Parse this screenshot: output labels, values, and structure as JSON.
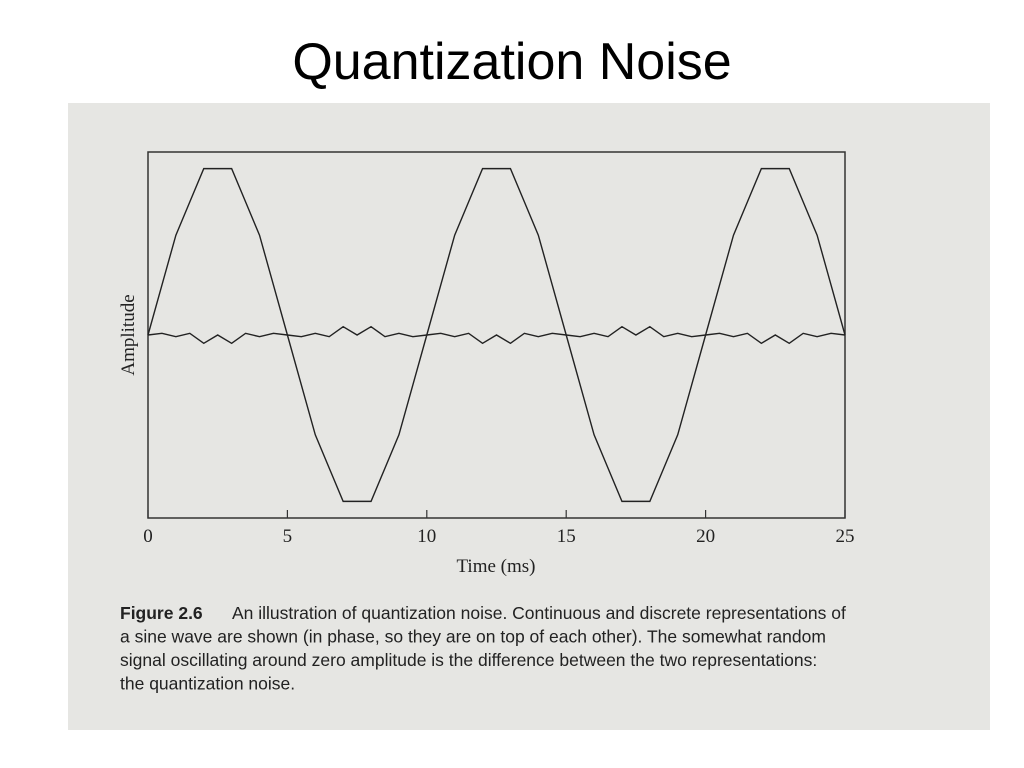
{
  "title": "Quantization Noise",
  "chart_data": {
    "type": "line",
    "xlabel": "Time (ms)",
    "ylabel": "Amplitude",
    "x": [
      0,
      0.5,
      1,
      1.5,
      2,
      2.5,
      3,
      3.5,
      4,
      4.5,
      5,
      5.5,
      6,
      6.5,
      7,
      7.5,
      8,
      8.5,
      9,
      9.5,
      10,
      10.5,
      11,
      11.5,
      12,
      12.5,
      13,
      13.5,
      14,
      14.5,
      15,
      15.5,
      16,
      16.5,
      17,
      17.5,
      18,
      18.5,
      19,
      19.5,
      20,
      20.5,
      21,
      21.5,
      22,
      22.5,
      23,
      23.5,
      24,
      24.5,
      25
    ],
    "series": [
      {
        "color": "#222222",
        "values": [
          0,
          0.3,
          0.6,
          0.8,
          1,
          1,
          1,
          0.8,
          0.6,
          0.3,
          0,
          -0.3,
          -0.6,
          -0.8,
          -1,
          -1,
          -1,
          -0.8,
          -0.6,
          -0.3,
          0,
          0.3,
          0.6,
          0.8,
          1,
          1,
          1,
          0.8,
          0.6,
          0.3,
          0,
          -0.3,
          -0.6,
          -0.8,
          -1,
          -1,
          -1,
          -0.8,
          -0.6,
          -0.3,
          0,
          0.3,
          0.6,
          0.8,
          1,
          1,
          1,
          0.8,
          0.6,
          0.3,
          0
        ]
      },
      {
        "color": "#222222",
        "values": [
          0,
          0.01,
          -0.01,
          0.01,
          -0.05,
          0,
          -0.05,
          0.01,
          -0.01,
          0.01,
          0,
          -0.01,
          0.01,
          -0.01,
          0.05,
          0,
          0.05,
          -0.01,
          0.01,
          -0.01,
          0,
          0.01,
          -0.01,
          0.01,
          -0.05,
          0,
          -0.05,
          0.01,
          -0.01,
          0.01,
          0,
          -0.01,
          0.01,
          -0.01,
          0.05,
          0,
          0.05,
          -0.01,
          0.01,
          -0.01,
          0,
          0.01,
          -0.01,
          0.01,
          -0.05,
          0,
          -0.05,
          0.01,
          -0.01,
          0.01,
          0
        ]
      }
    ],
    "xlim": [
      0,
      25
    ],
    "xticks": [
      0,
      5,
      10,
      15,
      20,
      25
    ],
    "ylim": [
      -1.1,
      1.1
    ]
  },
  "caption": {
    "label": "Figure 2.6",
    "lines": [
      "An illustration of quantization noise. Continuous and discrete representations of",
      "a sine wave are shown (in phase, so they are on top of each other). The somewhat random",
      "signal oscillating around zero amplitude is the difference between the two representations:",
      "the quantization noise."
    ]
  }
}
